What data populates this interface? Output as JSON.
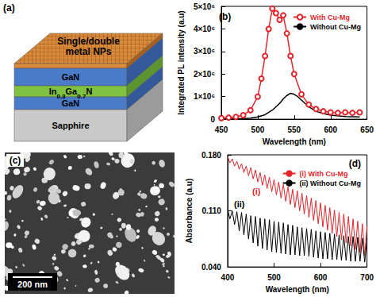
{
  "panels": {
    "a": {
      "label": "(a)",
      "layers": [
        "Single/double\nmetal NPs",
        "GaN",
        "In0.3Ga0.7N",
        "GaN",
        "Sapphire"
      ]
    },
    "c": {
      "label": "(c)",
      "scale_bar": "200 nm"
    }
  },
  "chart_data": [
    {
      "type": "line",
      "title": "(b)",
      "x_label": "Wavelength (nm)",
      "y_label": "Integrated PL intensity (a.u)",
      "xlim": [
        450,
        650
      ],
      "xticks": [
        450,
        500,
        550,
        600,
        650
      ],
      "ylim": [
        0,
        5000000
      ],
      "yticks": [
        0,
        {
          "value": 1000000,
          "label": "1×10⁶"
        },
        {
          "value": 2000000,
          "label": "2×10⁶"
        },
        {
          "value": 3000000,
          "label": "3×10⁶"
        },
        {
          "value": 4000000,
          "label": "4×10⁶"
        },
        {
          "value": 5000000,
          "label": "5×10⁶"
        }
      ],
      "grid": false,
      "legend": "upper right",
      "series": [
        {
          "name": "With Cu-Mg",
          "color": "#e3262b",
          "marker": "circle",
          "x": [
            450,
            460,
            470,
            480,
            490,
            500,
            505,
            510,
            515,
            520,
            525,
            530,
            535,
            540,
            545,
            550,
            560,
            570,
            580,
            590,
            600,
            610,
            620,
            630,
            640
          ],
          "values": [
            50000,
            70000,
            100000,
            180000,
            400000,
            1000000,
            1800000,
            2800000,
            4000000,
            4900000,
            4700000,
            4400000,
            4600000,
            3800000,
            2800000,
            2000000,
            1100000,
            650000,
            450000,
            350000,
            300000,
            280000,
            300000,
            280000,
            300000
          ]
        },
        {
          "name": "Without Cu-Mg",
          "color": "#000000",
          "marker": "none",
          "x": [
            450,
            460,
            470,
            480,
            490,
            500,
            510,
            520,
            525,
            530,
            535,
            540,
            545,
            550,
            555,
            560,
            570,
            580,
            590,
            600,
            620,
            640
          ],
          "values": [
            0,
            0,
            20000,
            30000,
            50000,
            100000,
            200000,
            400000,
            550000,
            700000,
            900000,
            1050000,
            1150000,
            1100000,
            1000000,
            850000,
            550000,
            350000,
            250000,
            180000,
            120000,
            100000
          ]
        }
      ]
    },
    {
      "type": "line",
      "title": "(d)",
      "x_label": "Wavelength (nm)",
      "y_label": "Absorbance (a.u)",
      "xlim": [
        400,
        700
      ],
      "xticks": [
        400,
        500,
        600,
        700
      ],
      "ylim": [
        0.04,
        0.18
      ],
      "yticks": [
        {
          "value": 0.04,
          "label": "0.040"
        },
        {
          "value": 0.11,
          "label": "0.110"
        },
        {
          "value": 0.18,
          "label": "0.180"
        }
      ],
      "grid": false,
      "legend": "upper right",
      "annotations": [
        "(i)",
        "(ii)"
      ],
      "series": [
        {
          "name": "(i) With Cu-Mg",
          "color": "#e3262b",
          "marker": "none",
          "x": [
            400,
            405,
            410,
            415,
            420,
            425,
            430,
            435,
            440,
            445,
            450,
            455,
            460,
            465,
            470,
            475,
            480,
            485,
            490,
            495,
            500,
            505,
            510,
            515,
            520,
            525,
            530,
            535,
            540,
            545,
            550,
            555,
            560,
            565,
            570,
            575,
            580,
            585,
            590,
            595,
            600,
            605,
            610,
            615,
            620,
            625,
            630,
            635,
            640,
            645,
            650,
            655,
            660,
            665,
            670,
            675,
            680,
            685,
            690,
            695,
            700
          ],
          "values": [
            0.178,
            0.17,
            0.175,
            0.166,
            0.172,
            0.162,
            0.169,
            0.158,
            0.166,
            0.154,
            0.164,
            0.15,
            0.161,
            0.146,
            0.158,
            0.142,
            0.155,
            0.138,
            0.152,
            0.134,
            0.149,
            0.13,
            0.146,
            0.126,
            0.143,
            0.122,
            0.14,
            0.118,
            0.137,
            0.114,
            0.135,
            0.11,
            0.132,
            0.106,
            0.129,
            0.102,
            0.126,
            0.098,
            0.123,
            0.094,
            0.12,
            0.09,
            0.117,
            0.086,
            0.114,
            0.082,
            0.111,
            0.078,
            0.108,
            0.074,
            0.106,
            0.07,
            0.103,
            0.066,
            0.1,
            0.062,
            0.097,
            0.058,
            0.094,
            0.054,
            0.091
          ]
        },
        {
          "name": "(ii) Without Cu-Mg",
          "color": "#000000",
          "marker": "none",
          "x": [
            400,
            405,
            410,
            415,
            420,
            425,
            430,
            435,
            440,
            445,
            450,
            455,
            460,
            465,
            470,
            475,
            480,
            485,
            490,
            495,
            500,
            505,
            510,
            515,
            520,
            525,
            530,
            535,
            540,
            545,
            550,
            555,
            560,
            565,
            570,
            575,
            580,
            585,
            590,
            595,
            600,
            605,
            610,
            615,
            620,
            625,
            630,
            635,
            640,
            645,
            650,
            655,
            660,
            665,
            670,
            675,
            680,
            685,
            690,
            695,
            700
          ],
          "values": [
            0.112,
            0.1,
            0.11,
            0.093,
            0.109,
            0.085,
            0.108,
            0.08,
            0.106,
            0.075,
            0.104,
            0.07,
            0.103,
            0.066,
            0.101,
            0.063,
            0.1,
            0.061,
            0.099,
            0.059,
            0.097,
            0.058,
            0.096,
            0.057,
            0.095,
            0.056,
            0.093,
            0.055,
            0.092,
            0.055,
            0.09,
            0.054,
            0.089,
            0.054,
            0.088,
            0.053,
            0.087,
            0.052,
            0.085,
            0.051,
            0.084,
            0.05,
            0.083,
            0.05,
            0.082,
            0.049,
            0.081,
            0.049,
            0.08,
            0.048,
            0.079,
            0.048,
            0.078,
            0.047,
            0.078,
            0.047,
            0.077,
            0.047,
            0.076,
            0.046,
            0.075
          ]
        }
      ]
    }
  ]
}
